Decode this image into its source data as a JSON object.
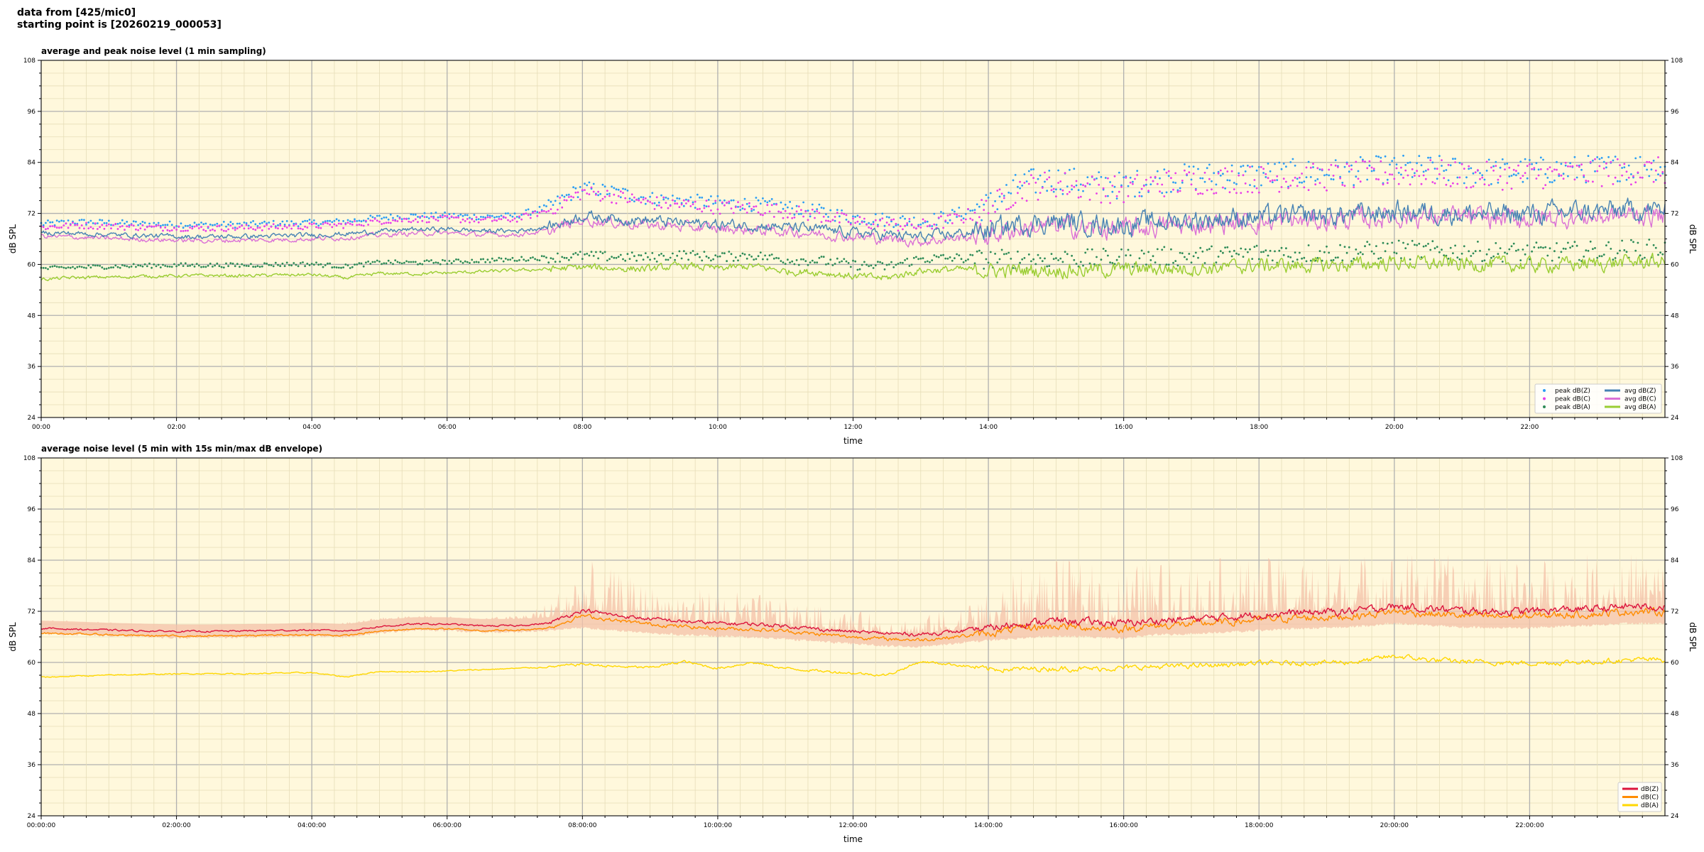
{
  "header": {
    "line1": "data from [425/mic0]",
    "line2": "starting point is [20260219_000053]"
  },
  "colors": {
    "plot_bg": "#fff8dc",
    "peak_z": "#2a9df4",
    "peak_c": "#e83ee8",
    "peak_a": "#2e8b57",
    "avg_z": "#4682b4",
    "avg_c": "#da70d6",
    "avg_a": "#9acd32",
    "z": "#dc143c",
    "c": "#ff8c00",
    "a": "#ffd700",
    "envelope": "#f4c2a8"
  },
  "chart_data": [
    {
      "type": "line",
      "title": "average and peak noise level (1 min sampling)",
      "xlabel": "time",
      "ylabel": "dB SPL",
      "ylim": [
        24,
        108
      ],
      "xlim_hours": [
        0,
        24
      ],
      "yticks": [
        24,
        36,
        48,
        60,
        72,
        84,
        96,
        108
      ],
      "xtick_labels": [
        "00:00",
        "02:00",
        "04:00",
        "06:00",
        "08:00",
        "10:00",
        "12:00",
        "14:00",
        "16:00",
        "18:00",
        "20:00",
        "22:00"
      ],
      "grid": true,
      "legend_position": "bottom-right",
      "legend": [
        "peak dB(Z)",
        "peak dB(C)",
        "peak dB(A)",
        "avg dB(Z)",
        "avg dB(C)",
        "avg dB(A)"
      ],
      "x_hours": [
        0,
        0.5,
        1,
        1.5,
        2,
        2.5,
        3,
        3.5,
        4,
        4.5,
        5,
        5.5,
        6,
        6.5,
        7,
        7.5,
        8,
        8.5,
        9,
        9.5,
        10,
        10.5,
        11,
        11.5,
        12,
        12.5,
        13,
        13.5,
        14,
        14.5,
        15,
        15.5,
        16,
        16.5,
        17,
        17.5,
        18,
        18.5,
        19,
        19.5,
        20,
        20.5,
        21,
        21.5,
        22,
        22.5,
        23,
        23.5,
        24
      ],
      "series": [
        {
          "name": "avg dB(Z)",
          "type": "line",
          "values": [
            67.5,
            67.3,
            67,
            66.8,
            66.6,
            66.5,
            66.6,
            66.7,
            66.9,
            67.2,
            67.8,
            68.2,
            68.3,
            67.9,
            67.9,
            68.8,
            71.5,
            70.8,
            70.3,
            69.8,
            69.4,
            69.2,
            68.8,
            68.2,
            67.5,
            67,
            66.4,
            67.2,
            68,
            69.6,
            70,
            69.6,
            69.2,
            70.1,
            70.4,
            70.9,
            71.1,
            71.3,
            71.4,
            71.9,
            72.4,
            72.3,
            72,
            71.8,
            71.9,
            72.3,
            72.4,
            72.8,
            72.8
          ]
        },
        {
          "name": "avg dB(C)",
          "type": "line",
          "values": [
            66.6,
            66.4,
            66.1,
            65.9,
            65.7,
            65.6,
            65.7,
            65.8,
            66,
            66.3,
            66.9,
            67.3,
            67.4,
            67,
            67,
            67.9,
            70.4,
            69.8,
            69.3,
            68.8,
            68.4,
            68.1,
            67.8,
            67.2,
            66.5,
            66,
            65.4,
            66.2,
            67,
            68.5,
            68.9,
            68.5,
            68.1,
            69,
            69.3,
            69.8,
            70,
            70.2,
            70.3,
            70.8,
            71.3,
            71.2,
            70.9,
            70.7,
            70.8,
            71.1,
            71.2,
            71.6,
            71.6
          ]
        },
        {
          "name": "avg dB(A)",
          "type": "line",
          "values": [
            56.5,
            56.9,
            57,
            57.2,
            57.3,
            57.4,
            57.3,
            57.5,
            57.6,
            56.8,
            57.9,
            57.8,
            58,
            58.3,
            58.6,
            58.9,
            59.3,
            59.1,
            58.9,
            59.7,
            59,
            59.6,
            58.4,
            58.2,
            57.2,
            56.8,
            58.6,
            58.8,
            58.5,
            58.6,
            58.7,
            58.6,
            58.8,
            59,
            59.1,
            59.3,
            59.8,
            59.7,
            59.8,
            60,
            60.5,
            60.2,
            60.1,
            60,
            59.8,
            60,
            60.2,
            60.6,
            60.6
          ]
        },
        {
          "name": "peak dB(Z)",
          "type": "scatter",
          "values": [
            69.5,
            70,
            69.8,
            69.5,
            69.4,
            69.3,
            69.4,
            69.6,
            69.8,
            70.1,
            71,
            71.4,
            71.5,
            71.2,
            71.4,
            73.5,
            78,
            77,
            75.5,
            75,
            74.5,
            74.2,
            73.5,
            72.5,
            71,
            70.5,
            70,
            71.5,
            74,
            79,
            80,
            79,
            78.5,
            80,
            80.5,
            81,
            81,
            81.5,
            81.5,
            82,
            82.5,
            82.5,
            82,
            81.8,
            82,
            82.2,
            82.5,
            83,
            83
          ]
        },
        {
          "name": "peak dB(C)",
          "type": "scatter",
          "values": [
            68.7,
            69.2,
            69,
            68.7,
            68.6,
            68.5,
            68.6,
            68.8,
            69,
            69.3,
            70.2,
            70.6,
            70.7,
            70.4,
            70.6,
            72.7,
            77,
            76,
            74.5,
            74,
            73.5,
            73.2,
            72.5,
            71.5,
            70,
            69.5,
            69,
            70.5,
            73,
            78,
            79,
            78,
            77.5,
            79,
            79.5,
            80,
            80,
            80.5,
            80.5,
            81,
            81.5,
            81.5,
            81,
            80.8,
            81,
            81.2,
            81.5,
            82,
            82
          ]
        },
        {
          "name": "peak dB(A)",
          "type": "scatter",
          "values": [
            59,
            59.3,
            59.5,
            59.7,
            59.8,
            59.8,
            59.8,
            60,
            60.1,
            59.5,
            60.5,
            60.4,
            60.6,
            60.9,
            61.2,
            61.6,
            62,
            61.8,
            61.6,
            62.3,
            61.7,
            62.2,
            61.1,
            60.9,
            59.9,
            59.5,
            61.3,
            61.5,
            61.2,
            61.3,
            61.4,
            61.3,
            61.5,
            61.8,
            62,
            62.2,
            62.7,
            62.6,
            62.7,
            63,
            63.5,
            63.2,
            63.1,
            63,
            62.8,
            63,
            63.2,
            63.6,
            63.6
          ]
        }
      ]
    },
    {
      "type": "line",
      "title": "average noise level (5 min with 15s min/max dB envelope)",
      "xlabel": "time",
      "ylabel": "dB SPL",
      "ylim": [
        24,
        108
      ],
      "xlim_hours": [
        0,
        24
      ],
      "yticks": [
        24,
        36,
        48,
        60,
        72,
        84,
        96,
        108
      ],
      "xtick_labels": [
        "00:00:00",
        "02:00:00",
        "04:00:00",
        "06:00:00",
        "08:00:00",
        "10:00:00",
        "12:00:00",
        "14:00:00",
        "16:00:00",
        "18:00:00",
        "20:00:00",
        "22:00:00"
      ],
      "grid": true,
      "legend_position": "bottom-right",
      "legend": [
        "dB(Z)",
        "dB(C)",
        "dB(A)"
      ],
      "x_hours": [
        0,
        0.5,
        1,
        1.5,
        2,
        2.5,
        3,
        3.5,
        4,
        4.5,
        5,
        5.5,
        6,
        6.5,
        7,
        7.5,
        8,
        8.5,
        9,
        9.5,
        10,
        10.5,
        11,
        11.5,
        12,
        12.5,
        13,
        13.5,
        14,
        14.5,
        15,
        15.5,
        16,
        16.5,
        17,
        17.5,
        18,
        18.5,
        19,
        19.5,
        20,
        20.5,
        21,
        21.5,
        22,
        22.5,
        23,
        23.5,
        24
      ],
      "series": [
        {
          "name": "dB(Z)",
          "type": "line",
          "values": [
            68,
            67.8,
            67.6,
            67.4,
            67.3,
            67.3,
            67.4,
            67.5,
            67.6,
            67.4,
            68.4,
            69,
            69,
            68.6,
            68.6,
            69.2,
            72.3,
            71,
            70.2,
            69.6,
            69.2,
            69,
            68.6,
            67.8,
            67.2,
            66.8,
            66.6,
            67.2,
            68,
            69.2,
            69.8,
            69.5,
            69.2,
            69.8,
            70.2,
            70.6,
            71.2,
            71.6,
            71.8,
            72.2,
            73.2,
            72.6,
            72.2,
            72,
            72,
            72.4,
            72.6,
            73.2,
            73
          ]
        },
        {
          "name": "dB(C)",
          "type": "line",
          "values": [
            66.9,
            66.7,
            66.5,
            66.3,
            66.2,
            66.2,
            66.3,
            66.4,
            66.5,
            66.3,
            67.3,
            67.9,
            67.9,
            67.5,
            67.5,
            68.1,
            71,
            69.8,
            69,
            68.4,
            68,
            67.8,
            67.4,
            66.6,
            66,
            65.5,
            65.3,
            66,
            66.8,
            68,
            68.5,
            68.2,
            67.9,
            68.6,
            69,
            69.4,
            70,
            70.4,
            70.6,
            71,
            72,
            71.4,
            71,
            70.8,
            70.8,
            71.2,
            71.4,
            72,
            71.8
          ]
        },
        {
          "name": "dB(A)",
          "type": "line",
          "values": [
            56.5,
            56.8,
            57,
            57.2,
            57.3,
            57.4,
            57.3,
            57.5,
            57.6,
            56.6,
            57.9,
            57.8,
            58,
            58.3,
            58.6,
            58.9,
            59.6,
            59,
            58.8,
            60.2,
            58.6,
            60,
            58.6,
            58,
            57.5,
            57,
            60.2,
            59.5,
            58.4,
            58.4,
            58.6,
            58.5,
            58.7,
            59,
            59.2,
            59.4,
            59.8,
            59.8,
            60,
            60.2,
            61.5,
            60.6,
            60.2,
            60,
            59.8,
            60,
            60.2,
            60.6,
            60.6
          ]
        },
        {
          "name": "envelope max",
          "type": "area",
          "values": [
            70,
            70,
            69.5,
            69,
            68.5,
            68.5,
            68.5,
            68.8,
            69,
            69.5,
            70.5,
            71,
            71,
            70.5,
            71,
            74,
            84,
            81,
            78,
            77,
            77,
            76,
            75,
            73,
            72,
            71,
            70.5,
            73,
            76,
            82,
            84,
            83,
            82,
            84,
            84,
            84,
            84,
            84.5,
            84.5,
            85,
            86,
            85,
            84.5,
            84,
            84,
            84.5,
            85,
            85.5,
            85.5
          ]
        },
        {
          "name": "envelope min",
          "type": "area",
          "values": [
            67,
            66.8,
            66.5,
            66.3,
            66.1,
            66.1,
            66.2,
            66.3,
            66.5,
            66.2,
            67.2,
            67.8,
            67.8,
            67.4,
            67.4,
            67.8,
            68.5,
            67.8,
            67.2,
            66.8,
            66.5,
            66.2,
            65.8,
            65.2,
            64.7,
            64.2,
            64,
            64.8,
            65.5,
            66,
            66.5,
            66.2,
            66,
            66.8,
            67,
            67.4,
            67.8,
            68.2,
            68.4,
            68.8,
            69.5,
            69,
            68.6,
            68.4,
            68.4,
            68.8,
            69,
            69.5,
            69.4
          ]
        }
      ]
    }
  ]
}
